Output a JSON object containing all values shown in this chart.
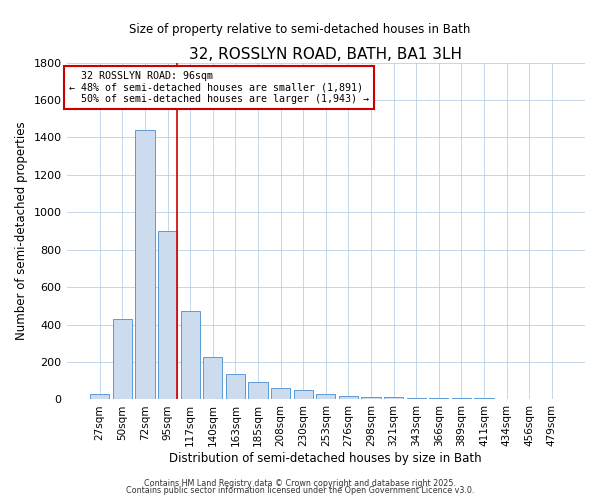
{
  "title": "32, ROSSLYN ROAD, BATH, BA1 3LH",
  "subtitle": "Size of property relative to semi-detached houses in Bath",
  "xlabel": "Distribution of semi-detached houses by size in Bath",
  "ylabel": "Number of semi-detached properties",
  "bar_color": "#ccdcee",
  "bar_edge_color": "#5b9bd5",
  "background_color": "#ffffff",
  "plot_bg_color": "#ffffff",
  "grid_color": "#aac4e0",
  "categories": [
    "27sqm",
    "50sqm",
    "72sqm",
    "95sqm",
    "117sqm",
    "140sqm",
    "163sqm",
    "185sqm",
    "208sqm",
    "230sqm",
    "253sqm",
    "276sqm",
    "298sqm",
    "321sqm",
    "343sqm",
    "366sqm",
    "389sqm",
    "411sqm",
    "434sqm",
    "456sqm",
    "479sqm"
  ],
  "values": [
    28,
    430,
    1440,
    900,
    470,
    225,
    135,
    95,
    60,
    48,
    30,
    18,
    15,
    12,
    10,
    10,
    8,
    8,
    5,
    5,
    5
  ],
  "property_label": "32 ROSSLYN ROAD: 96sqm",
  "pct_smaller": 48,
  "pct_larger": 50,
  "n_smaller": 1891,
  "n_larger": 1943,
  "vline_color": "#cc0000",
  "annotation_box_edge": "#cc0000",
  "ylim": [
    0,
    1800
  ],
  "yticks": [
    0,
    200,
    400,
    600,
    800,
    1000,
    1200,
    1400,
    1600,
    1800
  ],
  "footnote1": "Contains HM Land Registry data © Crown copyright and database right 2025.",
  "footnote2": "Contains public sector information licensed under the Open Government Licence v3.0."
}
